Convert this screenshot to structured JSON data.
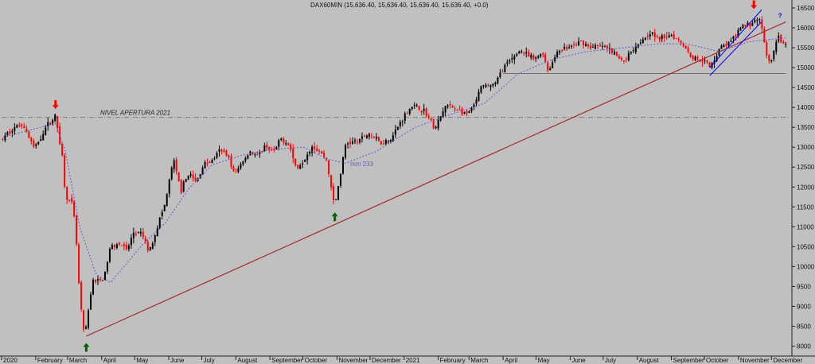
{
  "chart_data": {
    "type": "candlestick",
    "title": "DAX60MIN (15,636.40, 15,636.40, 15,636.40, 15,636.40, +0.0)",
    "x_ticks": [
      "2020",
      "February",
      "March",
      "April",
      "May",
      "June",
      "July",
      "August",
      "September",
      "October",
      "November",
      "December",
      "2021",
      "February",
      "March",
      "April",
      "May",
      "June",
      "July",
      "August",
      "September",
      "October",
      "November",
      "December"
    ],
    "y_ticks": [
      8000,
      8500,
      9000,
      9500,
      10000,
      10500,
      11000,
      11500,
      12000,
      12500,
      13000,
      13500,
      14000,
      14500,
      15000,
      15500,
      16000,
      16500
    ],
    "ylim": [
      7750,
      16700
    ],
    "grid": false,
    "colors": {
      "up": "#000000",
      "down": "#ff0000",
      "trendline": "#a52a2a",
      "ma": "#6a5acd",
      "channel": "#0000ff",
      "reference": "#808080",
      "arrow_up": "#006400",
      "arrow_down": "#ff0000",
      "question": "#0000ff",
      "background": "#c0c0c0"
    },
    "series": [
      {
        "name": "DAX60MIN",
        "kind": "price",
        "points": [
          [
            "2020-01-02",
            13200
          ],
          [
            "2020-01-10",
            13450
          ],
          [
            "2020-01-20",
            13600
          ],
          [
            "2020-01-31",
            12950
          ],
          [
            "2020-02-10",
            13500
          ],
          [
            "2020-02-19",
            13780
          ],
          [
            "2020-02-25",
            12800
          ],
          [
            "2020-02-28",
            11800
          ],
          [
            "2020-03-06",
            11500
          ],
          [
            "2020-03-09",
            10600
          ],
          [
            "2020-03-12",
            9200
          ],
          [
            "2020-03-16",
            8300
          ],
          [
            "2020-03-18",
            8450
          ],
          [
            "2020-03-20",
            8900
          ],
          [
            "2020-03-24",
            9700
          ],
          [
            "2020-03-27",
            9600
          ],
          [
            "2020-04-03",
            9700
          ],
          [
            "2020-04-09",
            10500
          ],
          [
            "2020-04-17",
            10600
          ],
          [
            "2020-04-24",
            10400
          ],
          [
            "2020-04-30",
            10850
          ],
          [
            "2020-05-08",
            10800
          ],
          [
            "2020-05-14",
            10350
          ],
          [
            "2020-05-22",
            11050
          ],
          [
            "2020-05-29",
            11600
          ],
          [
            "2020-06-05",
            12700
          ],
          [
            "2020-06-12",
            11900
          ],
          [
            "2020-06-19",
            12350
          ],
          [
            "2020-06-26",
            12100
          ],
          [
            "2020-07-03",
            12600
          ],
          [
            "2020-07-10",
            12650
          ],
          [
            "2020-07-17",
            12900
          ],
          [
            "2020-07-24",
            12850
          ],
          [
            "2020-07-31",
            12300
          ],
          [
            "2020-08-07",
            12650
          ],
          [
            "2020-08-14",
            12900
          ],
          [
            "2020-08-21",
            12750
          ],
          [
            "2020-08-28",
            13050
          ],
          [
            "2020-09-04",
            12850
          ],
          [
            "2020-09-11",
            13200
          ],
          [
            "2020-09-18",
            13100
          ],
          [
            "2020-09-25",
            12450
          ],
          [
            "2020-10-02",
            12700
          ],
          [
            "2020-10-09",
            13050
          ],
          [
            "2020-10-16",
            12900
          ],
          [
            "2020-10-23",
            12650
          ],
          [
            "2020-10-28",
            11700
          ],
          [
            "2020-10-30",
            11550
          ],
          [
            "2020-11-04",
            12300
          ],
          [
            "2020-11-09",
            13100
          ],
          [
            "2020-11-20",
            13150
          ],
          [
            "2020-11-30",
            13350
          ],
          [
            "2020-12-11",
            13100
          ],
          [
            "2020-12-21",
            13250
          ],
          [
            "2020-12-30",
            13700
          ],
          [
            "2021-01-08",
            14050
          ],
          [
            "2021-01-20",
            13900
          ],
          [
            "2021-01-29",
            13450
          ],
          [
            "2021-02-08",
            14050
          ],
          [
            "2021-02-19",
            13950
          ],
          [
            "2021-02-26",
            13800
          ],
          [
            "2021-03-05",
            14000
          ],
          [
            "2021-03-12",
            14500
          ],
          [
            "2021-03-25",
            14600
          ],
          [
            "2021-04-01",
            15000
          ],
          [
            "2021-04-09",
            15200
          ],
          [
            "2021-04-16",
            15450
          ],
          [
            "2021-04-23",
            15300
          ],
          [
            "2021-04-30",
            15200
          ],
          [
            "2021-05-07",
            15400
          ],
          [
            "2021-05-12",
            14900
          ],
          [
            "2021-05-21",
            15450
          ],
          [
            "2021-05-31",
            15500
          ],
          [
            "2021-06-11",
            15650
          ],
          [
            "2021-06-21",
            15500
          ],
          [
            "2021-06-30",
            15550
          ],
          [
            "2021-07-09",
            15400
          ],
          [
            "2021-07-19",
            15150
          ],
          [
            "2021-07-30",
            15550
          ],
          [
            "2021-08-13",
            15900
          ],
          [
            "2021-08-20",
            15700
          ],
          [
            "2021-08-31",
            15850
          ],
          [
            "2021-09-10",
            15650
          ],
          [
            "2021-09-20",
            15250
          ],
          [
            "2021-09-30",
            15200
          ],
          [
            "2021-10-06",
            15000
          ],
          [
            "2021-10-15",
            15500
          ],
          [
            "2021-10-25",
            15650
          ],
          [
            "2021-11-05",
            16050
          ],
          [
            "2021-11-12",
            16100
          ],
          [
            "2021-11-18",
            16250
          ],
          [
            "2021-11-22",
            16100
          ],
          [
            "2021-11-26",
            15300
          ],
          [
            "2021-11-30",
            15100
          ],
          [
            "2021-12-02",
            15250
          ],
          [
            "2021-12-07",
            15800
          ],
          [
            "2021-12-10",
            15600
          ],
          [
            "2021-12-14",
            15636
          ]
        ]
      },
      {
        "name": "mm 233",
        "kind": "moving-average",
        "points": [
          [
            "2020-01-02",
            13250
          ],
          [
            "2020-02-19",
            13600
          ],
          [
            "2020-02-28",
            12900
          ],
          [
            "2020-03-12",
            11000
          ],
          [
            "2020-03-27",
            9800
          ],
          [
            "2020-04-09",
            9600
          ],
          [
            "2020-04-23",
            10050
          ],
          [
            "2020-05-08",
            10550
          ],
          [
            "2020-05-29",
            11100
          ],
          [
            "2020-06-19",
            11950
          ],
          [
            "2020-07-10",
            12550
          ],
          [
            "2020-08-07",
            12800
          ],
          [
            "2020-09-04",
            12950
          ],
          [
            "2020-10-02",
            13000
          ],
          [
            "2020-10-23",
            12700
          ],
          [
            "2020-11-09",
            12600
          ],
          [
            "2020-12-07",
            12900
          ],
          [
            "2021-01-11",
            13500
          ],
          [
            "2021-02-15",
            13850
          ],
          [
            "2021-03-15",
            14100
          ],
          [
            "2021-04-15",
            14850
          ],
          [
            "2021-05-15",
            15200
          ],
          [
            "2021-06-15",
            15400
          ],
          [
            "2021-07-20",
            15500
          ],
          [
            "2021-08-20",
            15600
          ],
          [
            "2021-09-15",
            15600
          ],
          [
            "2021-10-15",
            15400
          ],
          [
            "2021-11-10",
            15650
          ],
          [
            "2021-12-14",
            15750
          ]
        ]
      }
    ],
    "lines": [
      {
        "kind": "trendline",
        "from": [
          "2020-03-18",
          8250
        ],
        "to": [
          "2021-12-14",
          16150
        ]
      },
      {
        "kind": "reference",
        "label": "NIVEL APERTURA 2021",
        "y": 13750
      },
      {
        "kind": "reference",
        "from": [
          "2021-04-01",
          14850
        ],
        "to": [
          "2021-12-14",
          14850
        ]
      },
      {
        "kind": "channel",
        "from": [
          "2021-10-06",
          15000
        ],
        "to": [
          "2021-11-22",
          16450
        ]
      },
      {
        "kind": "channel",
        "from": [
          "2021-10-06",
          14800
        ],
        "to": [
          "2021-11-22",
          16150
        ]
      }
    ],
    "annotations": [
      {
        "kind": "arrow-down",
        "at": [
          "2020-02-19",
          14020
        ]
      },
      {
        "kind": "arrow-up",
        "at": [
          "2020-03-18",
          8020
        ]
      },
      {
        "kind": "arrow-up",
        "at": [
          "2020-10-30",
          11300
        ]
      },
      {
        "kind": "arrow-down",
        "at": [
          "2021-11-15",
          16530
        ]
      },
      {
        "kind": "label",
        "text": "?",
        "at": [
          "2021-12-07",
          16250
        ],
        "color": "#0000ff"
      },
      {
        "kind": "label",
        "text": "mm 233",
        "at": [
          "2020-11-13",
          12520
        ],
        "color": "#6a5acd"
      }
    ]
  }
}
